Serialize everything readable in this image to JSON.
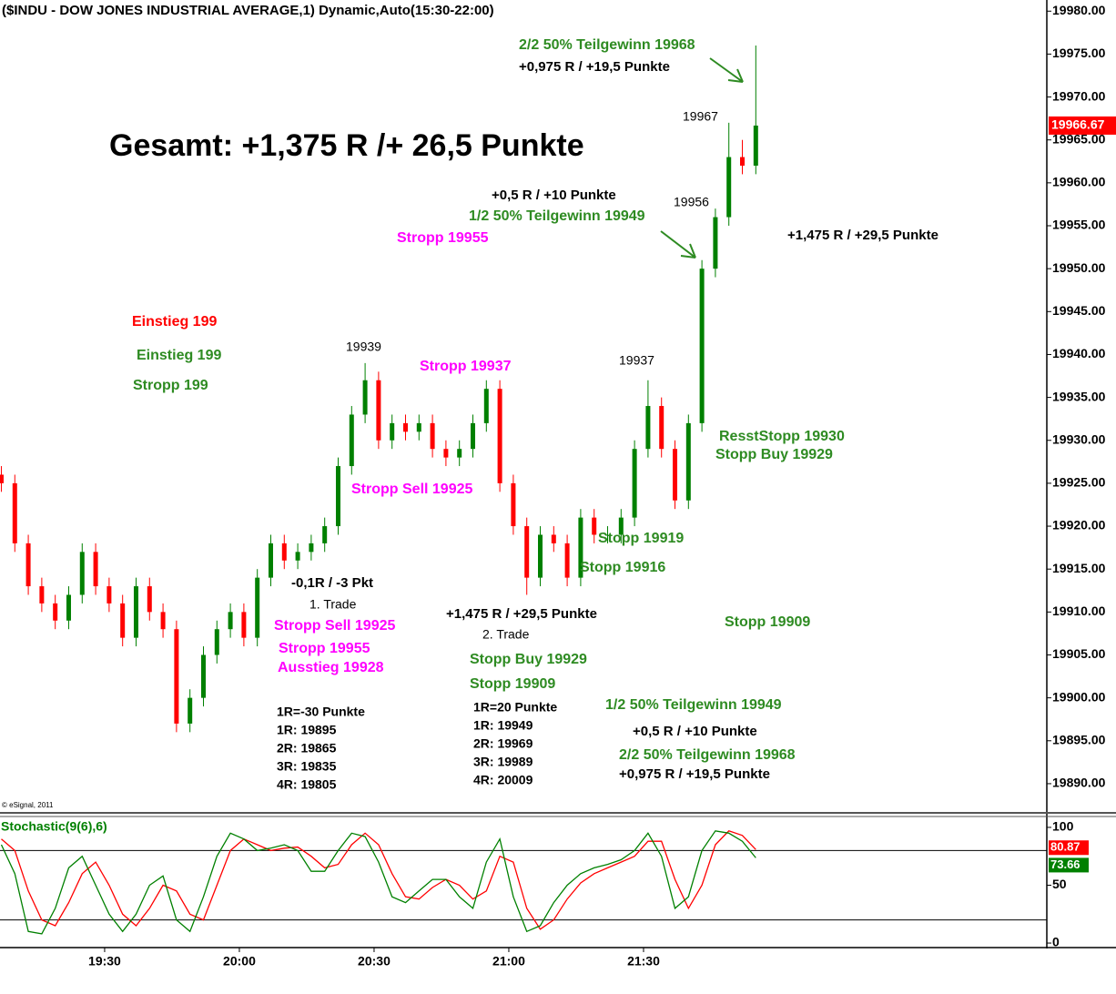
{
  "chart_data": [
    {
      "type": "candlestick",
      "title": "($INDU - DOW JONES INDUSTRIAL AVERAGE,1) Dynamic,Auto(15:30-22:00)",
      "copyright": "© eSignal, 2011",
      "x": [
        1147,
        1150,
        1153,
        1156,
        1159,
        1162,
        1165,
        1168,
        1171,
        1174,
        1177,
        1180,
        1183,
        1186,
        1189,
        1192,
        1195,
        1198,
        1201,
        1204,
        1207,
        1210,
        1213,
        1216,
        1219,
        1222,
        1225,
        1228,
        1231,
        1234,
        1237,
        1240,
        1243,
        1246,
        1249,
        1252,
        1255,
        1258,
        1261,
        1264,
        1267,
        1270,
        1273,
        1276,
        1279,
        1282,
        1285,
        1288,
        1291,
        1294,
        1297,
        1300,
        1303,
        1306,
        1309,
        1312,
        1315
      ],
      "candles": {
        "open": [
          19926,
          19925,
          19918,
          19913,
          19911,
          19909,
          19912,
          19917,
          19913,
          19911,
          19907,
          19913,
          19910,
          19908,
          19897,
          19900,
          19905,
          19908,
          19910,
          19907,
          19914,
          19918,
          19916,
          19917,
          19918,
          19920,
          19927,
          19933,
          19937,
          19930,
          19932,
          19931,
          19932,
          19929,
          19928,
          19929,
          19932,
          19936,
          19925,
          19920,
          19914,
          19919,
          19918,
          19914,
          19921,
          19919,
          19919,
          19921,
          19929,
          19934,
          19929,
          19923,
          19932,
          19950,
          19956,
          19963,
          19962
        ],
        "high": [
          19927,
          19926,
          19919,
          19914,
          19912,
          19913,
          19918,
          19918,
          19914,
          19912,
          19914,
          19914,
          19911,
          19909,
          19901,
          19906,
          19909,
          19911,
          19911,
          19915,
          19919,
          19919,
          19918,
          19919,
          19921,
          19928,
          19934,
          19939,
          19938,
          19933,
          19933,
          19933,
          19933,
          19930,
          19930,
          19933,
          19937,
          19937,
          19926,
          19921,
          19920,
          19920,
          19919,
          19922,
          19922,
          19920,
          19922,
          19930,
          19937,
          19935,
          19930,
          19933,
          19951,
          19957,
          19967,
          19965,
          19976
        ],
        "low": [
          19924,
          19917,
          19912,
          19910,
          19908,
          19908,
          19911,
          19912,
          19910,
          19906,
          19906,
          19909,
          19907,
          19896,
          19896,
          19899,
          19904,
          19907,
          19906,
          19906,
          19913,
          19915,
          19915,
          19916,
          19917,
          19919,
          19926,
          19932,
          19929,
          19929,
          19930,
          19930,
          19928,
          19927,
          19927,
          19928,
          19931,
          19924,
          19919,
          19912,
          19913,
          19917,
          19913,
          19913,
          19918,
          19918,
          19918,
          19920,
          19928,
          19928,
          19922,
          19922,
          19931,
          19949,
          19955,
          19961,
          19961
        ],
        "close": [
          19925,
          19918,
          19913,
          19911,
          19909,
          19912,
          19917,
          19913,
          19911,
          19907,
          19913,
          19910,
          19908,
          19897,
          19900,
          19905,
          19908,
          19910,
          19907,
          19914,
          19918,
          19916,
          19917,
          19918,
          19920,
          19927,
          19933,
          19937,
          19930,
          19932,
          19931,
          19932,
          19929,
          19928,
          19929,
          19932,
          19936,
          19925,
          19920,
          19914,
          19919,
          19918,
          19914,
          19921,
          19919,
          19919,
          19921,
          19929,
          19934,
          19929,
          19923,
          19932,
          19950,
          19956,
          19963,
          19962,
          19966.67
        ]
      },
      "up_color": "#008000",
      "down_color": "#ff0000",
      "last_color": "#ff0000",
      "xlim": [
        1146.7,
        1379.8
      ],
      "xticks": [
        {
          "value": 1170,
          "label": "19:30"
        },
        {
          "value": 1200,
          "label": "20:00"
        },
        {
          "value": 1230,
          "label": "20:30"
        },
        {
          "value": 1260,
          "label": "21:00"
        },
        {
          "value": 1290,
          "label": "21:30"
        }
      ],
      "ylim": [
        19886.6,
        19981.3
      ],
      "yticks": [
        {
          "value": 19980,
          "label": "19980.00"
        },
        {
          "value": 19975,
          "label": "19975.00"
        },
        {
          "value": 19970,
          "label": "19970.00"
        },
        {
          "value": 19965,
          "label": "19965.00"
        },
        {
          "value": 19960,
          "label": "19960.00"
        },
        {
          "value": 19955,
          "label": "19955.00"
        },
        {
          "value": 19950,
          "label": "19950.00"
        },
        {
          "value": 19945,
          "label": "19945.00"
        },
        {
          "value": 19940,
          "label": "19940.00"
        },
        {
          "value": 19935,
          "label": "19935.00"
        },
        {
          "value": 19930,
          "label": "19930.00"
        },
        {
          "value": 19925,
          "label": "19925.00"
        },
        {
          "value": 19920,
          "label": "19920.00"
        },
        {
          "value": 19915,
          "label": "19915.00"
        },
        {
          "value": 19910,
          "label": "19910.00"
        },
        {
          "value": 19905,
          "label": "19905.00"
        },
        {
          "value": 19900,
          "label": "19900.00"
        },
        {
          "value": 19895,
          "label": "19895.00"
        },
        {
          "value": 19890,
          "label": "19890.00"
        }
      ],
      "annotations": [
        {
          "text": "2/2 50% Teilgewinn 19968",
          "color": "#2e8b22"
        },
        {
          "text": "+0,975 R / +19,5 Punkte",
          "color": "#000000"
        },
        {
          "text": "Gesamt: +1,375 R /+ 26,5 Punkte",
          "color": "#000000"
        },
        {
          "text": "19967",
          "color": "#000000"
        },
        {
          "text": "+0,5 R / +10 Punkte",
          "color": "#000000"
        },
        {
          "text": "1/2 50% Teilgewinn 19949",
          "color": "#2e8b22"
        },
        {
          "text": "19956",
          "color": "#000000"
        },
        {
          "text": "Stropp 19955",
          "color": "#ff00ff"
        },
        {
          "text": "+1,475 R / +29,5 Punkte",
          "color": "#000000"
        },
        {
          "text": "Einstieg 199",
          "color": "#ff0000"
        },
        {
          "text": "Einstieg 199",
          "color": "#2e8b22"
        },
        {
          "text": "Stropp 199",
          "color": "#2e8b22"
        },
        {
          "text": "19939",
          "color": "#000000"
        },
        {
          "text": "Stropp 19937",
          "color": "#ff00ff"
        },
        {
          "text": "19937",
          "color": "#000000"
        },
        {
          "text": "ResstStopp 19930",
          "color": "#2e8b22"
        },
        {
          "text": "Stopp Buy 19929",
          "color": "#2e8b22"
        },
        {
          "text": "Stropp Sell 19925",
          "color": "#ff00ff"
        },
        {
          "text": "Stopp 19919",
          "color": "#2e8b22"
        },
        {
          "text": "Stopp 19916",
          "color": "#2e8b22"
        },
        {
          "text": "-0,1R / -3 Pkt",
          "color": "#000000"
        },
        {
          "text": "1. Trade",
          "color": "#000000"
        },
        {
          "text": "+1,475 R / +29,5 Punkte",
          "color": "#000000"
        },
        {
          "text": "Stopp 19909",
          "color": "#2e8b22"
        },
        {
          "text": "Stropp Sell 19925",
          "color": "#ff00ff"
        },
        {
          "text": "2. Trade",
          "color": "#000000"
        },
        {
          "text": "Stropp 19955",
          "color": "#ff00ff"
        },
        {
          "text": "Stopp Buy 19929",
          "color": "#2e8b22"
        },
        {
          "text": "Ausstieg 19928",
          "color": "#ff00ff"
        },
        {
          "text": "Stopp 19909",
          "color": "#2e8b22"
        },
        {
          "text": "1/2 50% Teilgewinn 19949",
          "color": "#2e8b22"
        },
        {
          "text": "1R=-30 Punkte",
          "color": "#000000"
        },
        {
          "text": "1R=20 Punkte",
          "color": "#000000"
        },
        {
          "text": "1R: 19895",
          "color": "#000000"
        },
        {
          "text": "1R: 19949",
          "color": "#000000"
        },
        {
          "text": "+0,5 R / +10 Punkte",
          "color": "#000000"
        },
        {
          "text": "2R: 19865",
          "color": "#000000"
        },
        {
          "text": "2R: 19969",
          "color": "#000000"
        },
        {
          "text": "2/2 50% Teilgewinn 19968",
          "color": "#2e8b22"
        },
        {
          "text": "3R: 19835",
          "color": "#000000"
        },
        {
          "text": "3R: 19989",
          "color": "#000000"
        },
        {
          "text": "+0,975 R / +19,5 Punkte",
          "color": "#000000"
        },
        {
          "text": "4R: 19805",
          "color": "#000000"
        },
        {
          "text": "4R: 20009",
          "color": "#000000"
        }
      ]
    },
    {
      "type": "line",
      "title": "Stochastic(9(6),6)",
      "x": [
        1147,
        1150,
        1153,
        1156,
        1159,
        1162,
        1165,
        1168,
        1171,
        1174,
        1177,
        1180,
        1183,
        1186,
        1189,
        1192,
        1195,
        1198,
        1201,
        1204,
        1207,
        1210,
        1213,
        1216,
        1219,
        1222,
        1225,
        1228,
        1231,
        1234,
        1237,
        1240,
        1243,
        1246,
        1249,
        1252,
        1255,
        1258,
        1261,
        1264,
        1267,
        1270,
        1273,
        1276,
        1279,
        1282,
        1285,
        1288,
        1291,
        1294,
        1297,
        1300,
        1303,
        1306,
        1309,
        1312,
        1315
      ],
      "series": [
        {
          "color": "#ff0000",
          "values": [
            90,
            80,
            45,
            20,
            15,
            35,
            60,
            70,
            50,
            25,
            15,
            30,
            50,
            45,
            25,
            20,
            50,
            80,
            90,
            85,
            80,
            82,
            83,
            75,
            65,
            68,
            85,
            95,
            85,
            60,
            40,
            38,
            48,
            55,
            50,
            38,
            45,
            75,
            70,
            30,
            12,
            20,
            38,
            52,
            60,
            65,
            70,
            75,
            88,
            88,
            55,
            30,
            50,
            85,
            97,
            93,
            80.87
          ]
        },
        {
          "color": "#008000",
          "values": [
            85,
            60,
            10,
            8,
            30,
            65,
            75,
            50,
            25,
            10,
            25,
            50,
            58,
            20,
            10,
            40,
            75,
            95,
            90,
            80,
            82,
            85,
            80,
            62,
            62,
            80,
            95,
            92,
            70,
            40,
            35,
            45,
            55,
            55,
            40,
            30,
            70,
            90,
            40,
            10,
            15,
            35,
            50,
            60,
            65,
            68,
            72,
            80,
            95,
            75,
            30,
            40,
            80,
            97,
            95,
            88,
            73.66
          ]
        }
      ],
      "levels": [
        80,
        20
      ],
      "ylim": [
        -3.9,
        109.4
      ],
      "yticks": [
        100,
        50,
        0
      ]
    }
  ]
}
